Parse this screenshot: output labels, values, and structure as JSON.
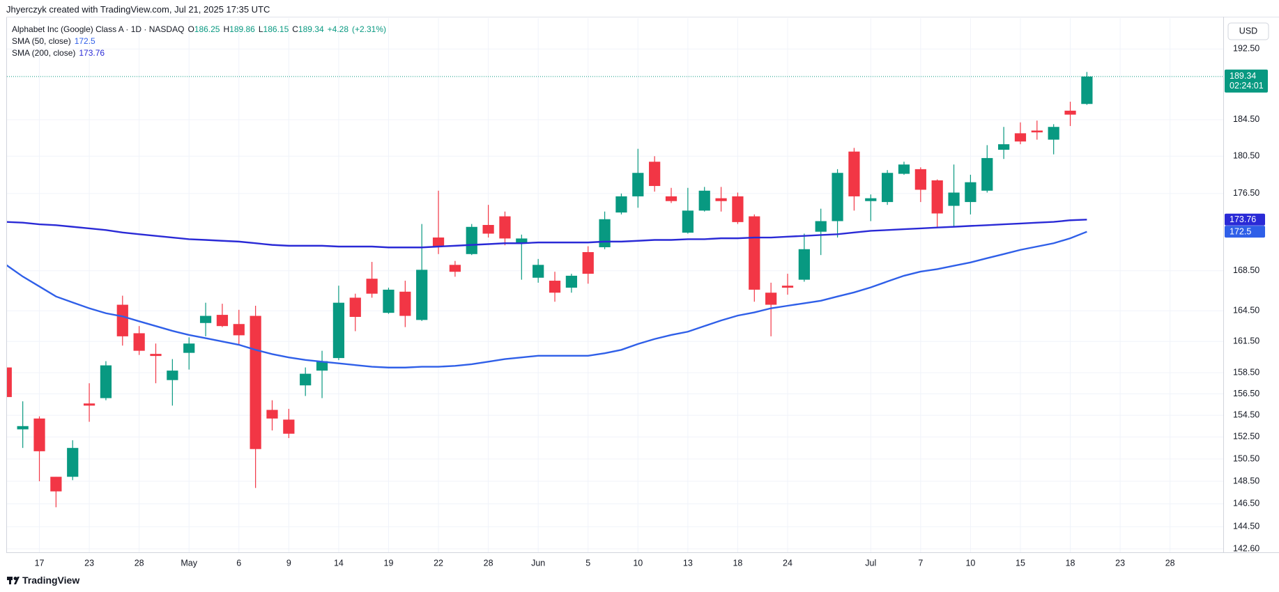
{
  "attribution": "Jhyerczyk created with TradingView.com, Jul 21, 2025 17:35 UTC",
  "brand": "TradingView",
  "chart_data": {
    "type": "candlestick",
    "symbol": "Alphabet Inc (Google) Class A · 1D · NASDAQ",
    "ohlc_prefixes": [
      "O",
      "H",
      "L",
      "C"
    ],
    "change": {
      "value": 4.28,
      "label": "+4.28"
    },
    "change_pct": {
      "value": 2.31,
      "label": "(+2.31%)"
    },
    "currency": "USD",
    "countdown": "02:24:01",
    "up_color": "#089981",
    "down_color": "#f23645",
    "log_scale": true,
    "grid": true,
    "xlim": [
      0.05,
      73.2
    ],
    "xticks": [
      {
        "value": 2,
        "label": "17"
      },
      {
        "value": 5,
        "label": "23"
      },
      {
        "value": 8,
        "label": "28"
      },
      {
        "value": 11,
        "label": "May"
      },
      {
        "value": 14,
        "label": "6"
      },
      {
        "value": 17,
        "label": "9"
      },
      {
        "value": 20,
        "label": "14"
      },
      {
        "value": 23,
        "label": "19"
      },
      {
        "value": 26,
        "label": "22"
      },
      {
        "value": 29,
        "label": "28"
      },
      {
        "value": 32,
        "label": "Jun"
      },
      {
        "value": 35,
        "label": "5"
      },
      {
        "value": 38,
        "label": "10"
      },
      {
        "value": 41,
        "label": "13"
      },
      {
        "value": 44,
        "label": "18"
      },
      {
        "value": 47,
        "label": "24"
      },
      {
        "value": 52,
        "label": "Jul"
      },
      {
        "value": 55,
        "label": "7"
      },
      {
        "value": 58,
        "label": "10"
      },
      {
        "value": 61,
        "label": "15"
      },
      {
        "value": 64,
        "label": "18"
      },
      {
        "value": 67,
        "label": "23"
      },
      {
        "value": 70,
        "label": "28"
      }
    ],
    "ylim": [
      142.3,
      196.1
    ],
    "yticks": [
      {
        "value": 192.5,
        "label": "192.50"
      },
      {
        "value": 184.5,
        "label": "184.50"
      },
      {
        "value": 180.5,
        "label": "180.50"
      },
      {
        "value": 176.5,
        "label": "176.50"
      },
      {
        "value": 168.5,
        "label": "168.50"
      },
      {
        "value": 164.5,
        "label": "164.50"
      },
      {
        "value": 161.5,
        "label": "161.50"
      },
      {
        "value": 158.5,
        "label": "158.50"
      },
      {
        "value": 156.5,
        "label": "156.50"
      },
      {
        "value": 154.5,
        "label": "154.50"
      },
      {
        "value": 152.5,
        "label": "152.50"
      },
      {
        "value": 150.5,
        "label": "150.50"
      },
      {
        "value": 148.5,
        "label": "148.50"
      },
      {
        "value": 146.5,
        "label": "146.50"
      },
      {
        "value": 144.5,
        "label": "144.50"
      },
      {
        "value": 142.6,
        "label": "142.60"
      }
    ],
    "open": [
      159.0,
      153.2,
      154.2,
      148.9,
      148.9,
      155.6,
      156.1,
      165.1,
      162.3,
      160.3,
      157.8,
      160.4,
      163.3,
      164.1,
      163.2,
      164.0,
      155.0,
      154.1,
      157.3,
      158.7,
      159.9,
      165.8,
      167.7,
      164.3,
      166.4,
      163.6,
      171.9,
      169.1,
      170.2,
      173.2,
      174.1,
      171.3,
      167.8,
      167.5,
      166.8,
      170.4,
      170.9,
      174.5,
      176.2,
      179.9,
      176.2,
      172.4,
      174.7,
      176.0,
      176.2,
      174.1,
      166.3,
      167.0,
      167.6,
      172.5,
      173.6,
      181.0,
      175.7,
      175.6,
      178.6,
      179.1,
      177.9,
      175.2,
      175.6,
      176.8,
      181.2,
      183.0,
      183.3,
      182.3,
      185.5,
      186.25
    ],
    "high": [
      159.6,
      155.8,
      154.4,
      148.9,
      152.2,
      157.5,
      159.6,
      166.0,
      163.0,
      161.3,
      159.8,
      161.9,
      165.3,
      165.2,
      164.6,
      165.0,
      155.9,
      155.1,
      159.0,
      160.6,
      167.0,
      166.2,
      169.4,
      166.8,
      167.5,
      173.3,
      176.8,
      169.5,
      173.3,
      175.3,
      174.6,
      172.2,
      169.7,
      168.4,
      168.2,
      171.0,
      174.6,
      176.5,
      181.3,
      180.5,
      177.1,
      177.1,
      177.2,
      177.2,
      176.6,
      174.3,
      167.3,
      168.2,
      172.3,
      174.9,
      179.1,
      181.4,
      176.4,
      179.0,
      179.9,
      179.3,
      178.0,
      179.6,
      178.5,
      181.7,
      183.7,
      184.2,
      184.4,
      184.0,
      186.5,
      189.86
    ],
    "low": [
      156.1,
      151.5,
      148.5,
      146.2,
      148.6,
      153.9,
      155.9,
      161.1,
      160.2,
      157.5,
      155.4,
      158.8,
      162.0,
      162.9,
      161.2,
      147.9,
      153.1,
      152.4,
      156.3,
      156.1,
      159.7,
      162.5,
      165.8,
      164.2,
      162.9,
      163.5,
      170.2,
      167.9,
      170.1,
      171.9,
      171.1,
      167.6,
      167.3,
      165.4,
      166.3,
      167.2,
      170.7,
      174.3,
      175.0,
      176.7,
      175.5,
      172.3,
      174.6,
      174.6,
      173.3,
      165.4,
      162.0,
      166.1,
      167.4,
      170.1,
      171.9,
      174.7,
      173.6,
      175.3,
      178.5,
      175.6,
      173.0,
      173.0,
      174.3,
      176.6,
      180.2,
      181.8,
      182.3,
      180.7,
      183.8,
      186.15
    ],
    "close": [
      156.2,
      153.5,
      151.2,
      147.6,
      151.5,
      155.4,
      159.2,
      162.0,
      160.6,
      160.1,
      158.7,
      161.3,
      164.0,
      163.0,
      162.1,
      151.4,
      154.2,
      152.8,
      158.4,
      159.6,
      165.3,
      163.9,
      166.2,
      166.6,
      164.0,
      168.6,
      171.0,
      168.4,
      173.0,
      172.3,
      171.8,
      171.8,
      169.1,
      166.3,
      168.0,
      168.2,
      173.8,
      176.2,
      178.7,
      177.3,
      175.7,
      174.7,
      176.8,
      175.7,
      173.5,
      166.6,
      165.1,
      166.8,
      170.7,
      173.6,
      178.7,
      176.2,
      176.0,
      178.7,
      179.6,
      176.9,
      174.4,
      176.6,
      177.7,
      180.3,
      181.8,
      182.1,
      183.1,
      183.7,
      185.06,
      189.34
    ],
    "series": [
      {
        "name": "SMA (50, close)",
        "color": "#2f5fe8",
        "values": [
          169.1,
          167.92,
          166.92,
          165.92,
          165.33,
          164.75,
          164.26,
          163.95,
          163.47,
          163.0,
          162.53,
          162.13,
          161.82,
          161.5,
          161.18,
          160.69,
          160.28,
          159.96,
          159.72,
          159.55,
          159.39,
          159.23,
          159.07,
          158.99,
          158.99,
          159.07,
          159.07,
          159.15,
          159.31,
          159.55,
          159.8,
          159.96,
          160.12,
          160.12,
          160.12,
          160.12,
          160.36,
          160.69,
          161.26,
          161.74,
          162.13,
          162.45,
          163.0,
          163.55,
          164.03,
          164.34,
          164.75,
          165.0,
          165.25,
          165.5,
          165.92,
          166.33,
          166.83,
          167.42,
          168.0,
          168.42,
          168.67,
          169.01,
          169.35,
          169.78,
          170.2,
          170.63,
          170.97,
          171.31,
          171.82,
          172.5
        ]
      },
      {
        "name": "SMA (200, close)",
        "color": "#2a2ad6",
        "values": [
          173.52,
          173.44,
          173.27,
          173.18,
          173.01,
          172.84,
          172.67,
          172.42,
          172.24,
          172.07,
          171.9,
          171.73,
          171.65,
          171.56,
          171.48,
          171.31,
          171.14,
          171.05,
          171.05,
          171.05,
          170.97,
          170.97,
          170.97,
          170.88,
          170.88,
          170.88,
          170.97,
          171.05,
          171.14,
          171.22,
          171.31,
          171.31,
          171.39,
          171.39,
          171.39,
          171.39,
          171.48,
          171.48,
          171.56,
          171.65,
          171.65,
          171.73,
          171.73,
          171.82,
          171.82,
          171.9,
          171.9,
          171.99,
          172.07,
          172.16,
          172.24,
          172.42,
          172.59,
          172.67,
          172.76,
          172.84,
          172.93,
          173.01,
          173.1,
          173.18,
          173.27,
          173.35,
          173.44,
          173.52,
          173.69,
          173.76
        ]
      }
    ]
  }
}
